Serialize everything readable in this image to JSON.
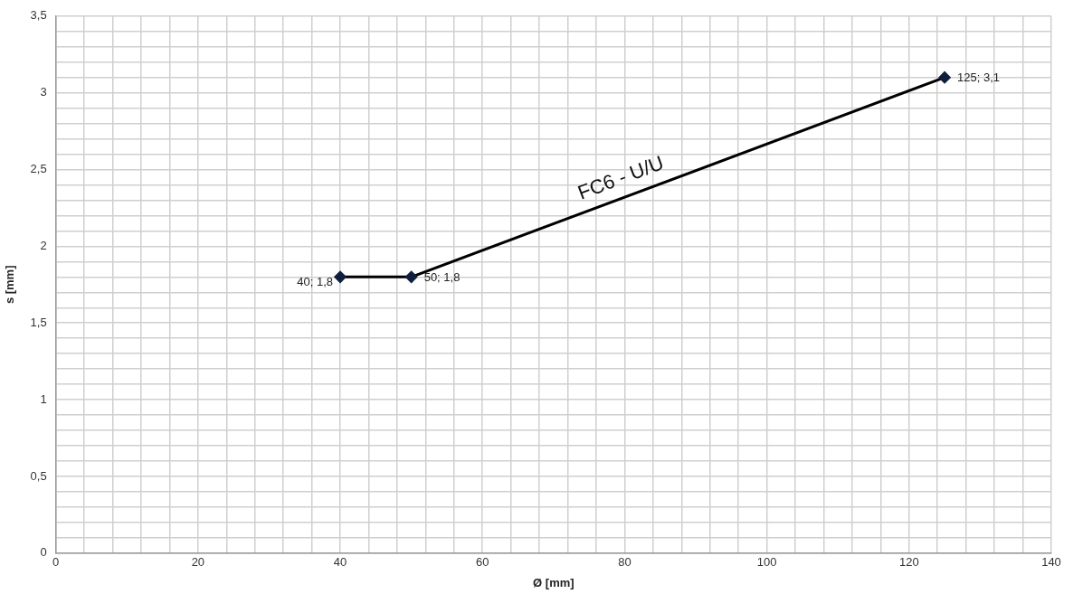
{
  "chart_data": {
    "type": "line",
    "xlabel": "Ø [mm]",
    "ylabel": "s [mm]",
    "x": [
      40,
      50,
      125
    ],
    "series": [
      {
        "color": "#000000",
        "values": [
          1.8,
          1.8,
          3.1
        ],
        "value_labels": [
          "40; 1,8",
          "50; 1,8",
          "125; 3,1"
        ]
      }
    ],
    "marker": "diamond",
    "line_style": "solid",
    "grid": true,
    "legend": false,
    "annotations": [
      {
        "text": "FC6 - U/U",
        "x": 80,
        "y": 2.32
      }
    ],
    "xlim": [
      0,
      140
    ],
    "xticks": [
      0,
      {
        "value": 4,
        "label": null
      },
      {
        "value": 8,
        "label": null
      },
      {
        "value": 12,
        "label": null
      },
      {
        "value": 16,
        "label": null
      },
      20,
      {
        "value": 24,
        "label": null
      },
      {
        "value": 28,
        "label": null
      },
      {
        "value": 32,
        "label": null
      },
      {
        "value": 36,
        "label": null
      },
      40,
      {
        "value": 44,
        "label": null
      },
      {
        "value": 48,
        "label": null
      },
      {
        "value": 52,
        "label": null
      },
      {
        "value": 56,
        "label": null
      },
      60,
      {
        "value": 64,
        "label": null
      },
      {
        "value": 68,
        "label": null
      },
      {
        "value": 72,
        "label": null
      },
      {
        "value": 76,
        "label": null
      },
      80,
      {
        "value": 84,
        "label": null
      },
      {
        "value": 88,
        "label": null
      },
      {
        "value": 92,
        "label": null
      },
      {
        "value": 96,
        "label": null
      },
      100,
      {
        "value": 104,
        "label": null
      },
      {
        "value": 108,
        "label": null
      },
      {
        "value": 112,
        "label": null
      },
      {
        "value": 116,
        "label": null
      },
      120,
      {
        "value": 124,
        "label": null
      },
      {
        "value": 128,
        "label": null
      },
      {
        "value": 132,
        "label": null
      },
      {
        "value": 136,
        "label": null
      },
      140
    ],
    "ylim": [
      0,
      3.5
    ],
    "yticks": [
      0,
      {
        "value": 0.1,
        "label": null
      },
      {
        "value": 0.2,
        "label": null
      },
      {
        "value": 0.3,
        "label": null
      },
      {
        "value": 0.4,
        "label": null
      },
      {
        "value": 0.5,
        "label": "0,5"
      },
      {
        "value": 0.6,
        "label": null
      },
      {
        "value": 0.7,
        "label": null
      },
      {
        "value": 0.8,
        "label": null
      },
      {
        "value": 0.9,
        "label": null
      },
      1,
      {
        "value": 1.1,
        "label": null
      },
      {
        "value": 1.2,
        "label": null
      },
      {
        "value": 1.3,
        "label": null
      },
      {
        "value": 1.4,
        "label": null
      },
      {
        "value": 1.5,
        "label": "1,5"
      },
      {
        "value": 1.6,
        "label": null
      },
      {
        "value": 1.7,
        "label": null
      },
      {
        "value": 1.8,
        "label": null
      },
      {
        "value": 1.9,
        "label": null
      },
      2,
      {
        "value": 2.1,
        "label": null
      },
      {
        "value": 2.2,
        "label": null
      },
      {
        "value": 2.3,
        "label": null
      },
      {
        "value": 2.4,
        "label": null
      },
      {
        "value": 2.5,
        "label": "2,5"
      },
      {
        "value": 2.6,
        "label": null
      },
      {
        "value": 2.7,
        "label": null
      },
      {
        "value": 2.8,
        "label": null
      },
      {
        "value": 2.9,
        "label": null
      },
      3,
      {
        "value": 3.1,
        "label": null
      },
      {
        "value": 3.2,
        "label": null
      },
      {
        "value": 3.3,
        "label": null
      },
      {
        "value": 3.4,
        "label": null
      },
      {
        "value": 3.5,
        "label": "3,5"
      }
    ]
  }
}
